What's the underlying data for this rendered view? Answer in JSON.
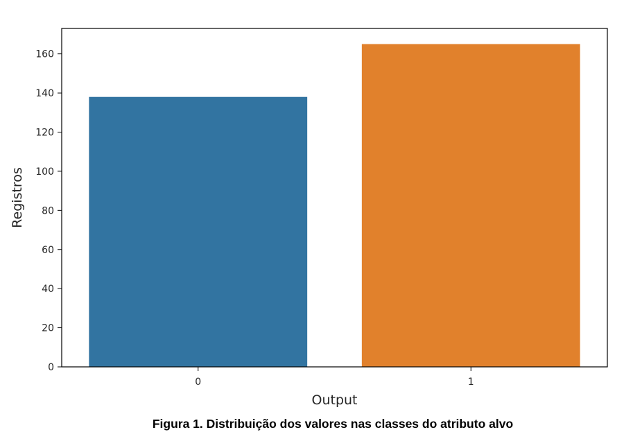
{
  "chart_data": {
    "type": "bar",
    "categories": [
      "0",
      "1"
    ],
    "values": [
      138,
      165
    ],
    "colors": [
      "#3274a1",
      "#e1812c"
    ],
    "xlabel": "Output",
    "ylabel": "Registros",
    "ylim": [
      0,
      173
    ],
    "yticks": [
      0,
      20,
      40,
      60,
      80,
      100,
      120,
      140,
      160
    ],
    "grid": false,
    "legend": "none"
  },
  "caption": "Figura 1. Distribuição dos valores nas classes do atributo alvo"
}
